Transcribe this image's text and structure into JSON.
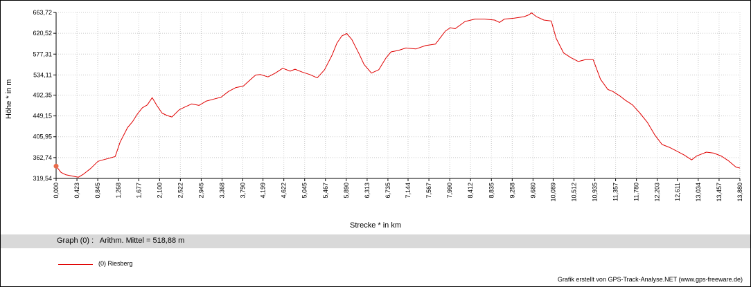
{
  "chart_data": {
    "type": "line",
    "title": "",
    "xlabel": "Strecke *  in  km",
    "ylabel": "Höhe *  in  m",
    "xlim": [
      0,
      13.88
    ],
    "ylim": [
      319.54,
      663.72
    ],
    "grid": true,
    "x_ticks": [
      "0,000",
      "0,423",
      "0,845",
      "1,268",
      "1,677",
      "2,100",
      "2,522",
      "2,945",
      "3,368",
      "3,790",
      "4,199",
      "4,622",
      "5,045",
      "5,467",
      "5,890",
      "6,313",
      "6,735",
      "7,144",
      "7,567",
      "7,990",
      "8,412",
      "8,835",
      "9,258",
      "9,680",
      "10,089",
      "10,512",
      "10,935",
      "11,357",
      "11,780",
      "12,203",
      "12,611",
      "13,034",
      "13,457",
      "13,880"
    ],
    "y_ticks": [
      "319,54",
      "362,74",
      "405,95",
      "449,15",
      "492,35",
      "534,11",
      "577,31",
      "620,52",
      "663,72"
    ],
    "series": [
      {
        "name": "(0) Riesberg",
        "color": "#e00000",
        "x": [
          0.0,
          0.1,
          0.2,
          0.35,
          0.45,
          0.55,
          0.7,
          0.85,
          0.95,
          1.1,
          1.2,
          1.3,
          1.35,
          1.45,
          1.55,
          1.65,
          1.75,
          1.85,
          1.95,
          2.05,
          2.15,
          2.25,
          2.35,
          2.5,
          2.6,
          2.75,
          2.9,
          3.05,
          3.2,
          3.35,
          3.5,
          3.65,
          3.8,
          3.95,
          4.05,
          4.15,
          4.3,
          4.45,
          4.6,
          4.75,
          4.85,
          5.0,
          5.15,
          5.3,
          5.45,
          5.6,
          5.7,
          5.8,
          5.9,
          6.0,
          6.05,
          6.15,
          6.25,
          6.4,
          6.55,
          6.7,
          6.8,
          6.95,
          7.1,
          7.3,
          7.5,
          7.7,
          7.9,
          8.0,
          8.1,
          8.3,
          8.5,
          8.7,
          8.9,
          9.0,
          9.1,
          9.3,
          9.5,
          9.6,
          9.65,
          9.75,
          9.9,
          10.05,
          10.15,
          10.3,
          10.45,
          10.6,
          10.75,
          10.9,
          11.05,
          11.2,
          11.3,
          11.45,
          11.55,
          11.7,
          11.85,
          12.0,
          12.15,
          12.3,
          12.45,
          12.6,
          12.75,
          12.9,
          13.0,
          13.1,
          13.2,
          13.35,
          13.5,
          13.65,
          13.8,
          13.88
        ],
        "y": [
          345,
          332,
          327,
          324,
          322,
          328,
          340,
          355,
          358,
          362,
          365,
          395,
          405,
          425,
          437,
          453,
          466,
          472,
          487,
          470,
          455,
          450,
          447,
          462,
          467,
          474,
          471,
          480,
          484,
          488,
          500,
          508,
          511,
          525,
          534,
          535,
          530,
          538,
          548,
          542,
          546,
          540,
          535,
          528,
          545,
          575,
          600,
          615,
          620,
          608,
          598,
          578,
          556,
          538,
          545,
          570,
          582,
          585,
          590,
          588,
          595,
          598,
          625,
          632,
          630,
          645,
          650,
          650,
          648,
          643,
          650,
          652,
          655,
          659,
          663,
          655,
          648,
          646,
          610,
          580,
          570,
          562,
          566,
          566,
          525,
          504,
          500,
          490,
          482,
          472,
          455,
          436,
          410,
          390,
          384,
          376,
          368,
          358,
          366,
          370,
          374,
          372,
          366,
          356,
          343,
          341
        ]
      }
    ]
  },
  "stats": {
    "text": "Graph (0) :   Arithm. Mittel = 518,88 m"
  },
  "legend": {
    "label": "(0) Riesberg"
  },
  "footer": {
    "credit": "Grafik erstellt von GPS-Track-Analyse.NET (www.gps-freeware.de)"
  }
}
